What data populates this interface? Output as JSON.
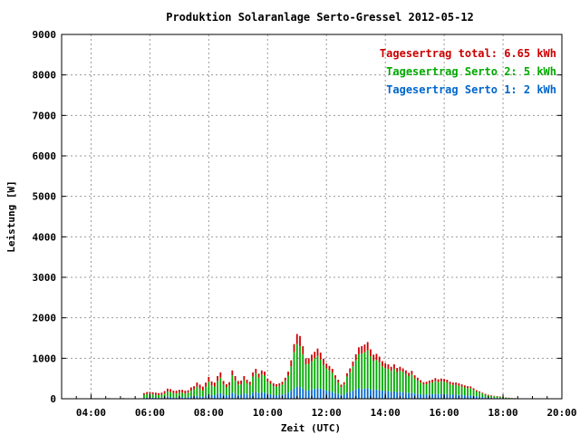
{
  "chart_data": {
    "type": "bar",
    "stacked": true,
    "title": "Produktion Solaranlage Serto-Gressel 2012-05-12",
    "xlabel": "Zeit (UTC)",
    "ylabel": "Leistung [W]",
    "ylim": [
      0,
      9000
    ],
    "xlim_hours": [
      3.0,
      20.0
    ],
    "y_ticks": [
      0,
      1000,
      2000,
      3000,
      4000,
      5000,
      6000,
      7000,
      8000,
      9000
    ],
    "y_tick_labels": [
      "0",
      "1000",
      "2000",
      "3000",
      "4000",
      "5000",
      "6000",
      "7000",
      "8000",
      "9000"
    ],
    "x_ticks": [
      4,
      6,
      8,
      10,
      12,
      14,
      16,
      18,
      20
    ],
    "x_tick_labels": [
      "04:00",
      "06:00",
      "08:00",
      "10:00",
      "12:00",
      "14:00",
      "16:00",
      "18:00",
      "20:00"
    ],
    "grid": true,
    "legend_position": "top-right",
    "legend": [
      {
        "label": "Tagesertrag total: 6.65 kWh",
        "color": "#cc0000"
      },
      {
        "label": "Tagesertrag Serto 2: 5 kWh",
        "color": "#00aa00"
      },
      {
        "label": "Tagesertrag Serto 1: 2 kWh",
        "color": "#0066cc"
      }
    ],
    "times": [
      4.0,
      4.6,
      5.1,
      5.8,
      5.9,
      6.0,
      6.1,
      6.2,
      6.3,
      6.4,
      6.5,
      6.6,
      6.7,
      6.8,
      6.9,
      7.0,
      7.1,
      7.2,
      7.3,
      7.4,
      7.5,
      7.6,
      7.7,
      7.8,
      7.9,
      8.0,
      8.1,
      8.2,
      8.3,
      8.4,
      8.5,
      8.6,
      8.7,
      8.8,
      8.9,
      9.0,
      9.1,
      9.2,
      9.3,
      9.4,
      9.5,
      9.6,
      9.7,
      9.8,
      9.9,
      10.0,
      10.1,
      10.2,
      10.3,
      10.4,
      10.5,
      10.6,
      10.7,
      10.8,
      10.9,
      11.0,
      11.1,
      11.2,
      11.3,
      11.4,
      11.5,
      11.6,
      11.7,
      11.8,
      11.9,
      12.0,
      12.1,
      12.2,
      12.3,
      12.4,
      12.5,
      12.6,
      12.7,
      12.8,
      12.9,
      13.0,
      13.1,
      13.2,
      13.3,
      13.4,
      13.5,
      13.6,
      13.7,
      13.8,
      13.9,
      14.0,
      14.1,
      14.2,
      14.3,
      14.4,
      14.5,
      14.6,
      14.7,
      14.8,
      14.9,
      15.0,
      15.1,
      15.2,
      15.3,
      15.4,
      15.5,
      15.6,
      15.7,
      15.8,
      15.9,
      16.0,
      16.1,
      16.2,
      16.3,
      16.4,
      16.5,
      16.6,
      16.7,
      16.8,
      16.9,
      17.0,
      17.1,
      17.2,
      17.3,
      17.4,
      17.5,
      17.6,
      17.7,
      17.8,
      17.9,
      18.0,
      18.1,
      18.2,
      18.3,
      18.4,
      18.5,
      18.6,
      18.7
    ],
    "series": [
      {
        "name": "Tagesertrag Serto 1: 2 kWh",
        "color": "#0066cc",
        "values": [
          3,
          3,
          3,
          20,
          25,
          30,
          30,
          25,
          20,
          25,
          35,
          50,
          45,
          30,
          30,
          45,
          40,
          30,
          40,
          55,
          65,
          70,
          60,
          50,
          80,
          110,
          90,
          80,
          120,
          140,
          100,
          80,
          90,
          150,
          120,
          90,
          100,
          130,
          110,
          90,
          150,
          170,
          140,
          160,
          150,
          120,
          110,
          90,
          80,
          90,
          100,
          120,
          150,
          200,
          250,
          300,
          290,
          250,
          200,
          210,
          230,
          240,
          260,
          250,
          220,
          200,
          190,
          170,
          140,
          120,
          90,
          100,
          150,
          170,
          200,
          230,
          260,
          240,
          250,
          260,
          230,
          220,
          230,
          210,
          200,
          190,
          180,
          170,
          180,
          160,
          170,
          160,
          150,
          140,
          150,
          130,
          120,
          110,
          100,
          100,
          110,
          110,
          120,
          110,
          120,
          115,
          110,
          100,
          100,
          100,
          95,
          90,
          85,
          80,
          80,
          70,
          60,
          55,
          45,
          35,
          30,
          25,
          20,
          20,
          18,
          15,
          10,
          8,
          6,
          5,
          4,
          3,
          2
        ]
      },
      {
        "name": "Tagesertrag Serto 2: 5 kWh",
        "color": "#00aa00",
        "values": [
          7,
          7,
          7,
          80,
          95,
          90,
          80,
          75,
          70,
          75,
          95,
          130,
          125,
          110,
          100,
          105,
          110,
          100,
          110,
          145,
          165,
          230,
          190,
          150,
          220,
          310,
          240,
          220,
          320,
          380,
          250,
          200,
          240,
          430,
          330,
          260,
          260,
          330,
          270,
          250,
          400,
          460,
          380,
          440,
          420,
          300,
          260,
          220,
          220,
          230,
          250,
          320,
          420,
          600,
          900,
          1050,
          1010,
          850,
          650,
          650,
          700,
          760,
          800,
          720,
          620,
          550,
          510,
          470,
          360,
          280,
          200,
          250,
          400,
          480,
          600,
          720,
          840,
          880,
          900,
          940,
          820,
          720,
          730,
          690,
          600,
          570,
          560,
          520,
          560,
          500,
          520,
          500,
          460,
          420,
          450,
          370,
          330,
          290,
          250,
          260,
          280,
          290,
          320,
          300,
          310,
          305,
          290,
          260,
          240,
          240,
          225,
          210,
          195,
          180,
          180,
          150,
          120,
          105,
          85,
          65,
          50,
          45,
          40,
          35,
          32,
          25,
          20,
          15,
          12,
          10,
          8,
          5,
          3
        ]
      },
      {
        "name": "Tagesertrag total: 6.65 kWh",
        "color": "#cc0000",
        "values": [
          5,
          5,
          5,
          40,
          45,
          50,
          50,
          50,
          50,
          50,
          60,
          70,
          70,
          60,
          70,
          70,
          70,
          70,
          60,
          80,
          80,
          100,
          100,
          100,
          100,
          120,
          100,
          100,
          120,
          130,
          90,
          80,
          80,
          120,
          110,
          90,
          90,
          100,
          90,
          80,
          100,
          110,
          100,
          100,
          100,
          80,
          70,
          70,
          60,
          60,
          70,
          80,
          100,
          150,
          200,
          250,
          250,
          200,
          150,
          140,
          160,
          160,
          180,
          170,
          150,
          120,
          110,
          100,
          80,
          70,
          60,
          60,
          80,
          100,
          120,
          150,
          170,
          180,
          190,
          200,
          170,
          150,
          150,
          140,
          130,
          120,
          110,
          100,
          110,
          100,
          100,
          90,
          90,
          80,
          90,
          80,
          70,
          60,
          60,
          60,
          60,
          70,
          70,
          70,
          70,
          70,
          70,
          60,
          60,
          60,
          60,
          55,
          50,
          50,
          45,
          40,
          30,
          25,
          20,
          20,
          18,
          15,
          12,
          10,
          8,
          6,
          5,
          4,
          3,
          2,
          2,
          2,
          1
        ]
      }
    ]
  }
}
